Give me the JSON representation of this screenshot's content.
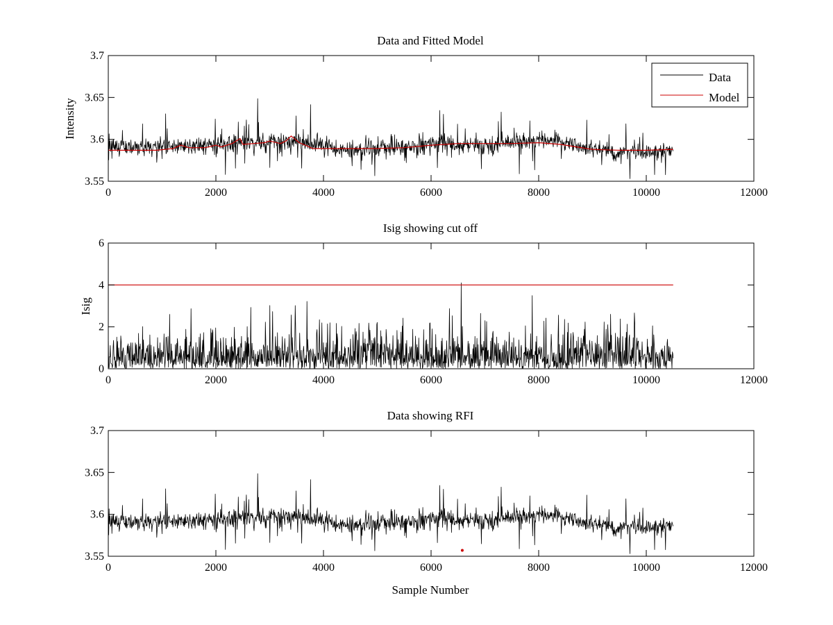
{
  "figure": {
    "background": "#ffffff"
  },
  "colors": {
    "data": "#000000",
    "model": "#cc0000",
    "axes": "#000000"
  },
  "chart_data": [
    {
      "type": "line",
      "title": "Data and Fitted Model",
      "xlabel": "",
      "ylabel": "Intensity",
      "xlim": [
        0,
        12000
      ],
      "ylim": [
        3.55,
        3.7
      ],
      "xticks": [
        0,
        2000,
        4000,
        6000,
        8000,
        10000,
        12000
      ],
      "xtick_labels": [
        "0",
        "2000",
        "4000",
        "6000",
        "8000",
        "10000",
        "12000"
      ],
      "yticks": [
        3.55,
        3.6,
        3.65,
        3.7
      ],
      "ytick_labels": [
        "3.55",
        "3.6",
        "3.65",
        "3.7"
      ],
      "grid": false,
      "legend": {
        "placement": "top-right",
        "entries": [
          "Data",
          "Model"
        ]
      },
      "series": [
        {
          "name": "Data",
          "color": "#000000",
          "kind": "noisy",
          "x_range": [
            0,
            10500
          ],
          "n": 1400,
          "noise_sd": 0.008,
          "spike_sd": 0.018,
          "baseline_x": [
            0,
            500,
            1000,
            1500,
            2000,
            2500,
            3000,
            3500,
            4000,
            4500,
            5000,
            5500,
            6000,
            6500,
            7000,
            7500,
            8000,
            8500,
            9000,
            9500,
            10000,
            10500
          ],
          "baseline_y": [
            3.592,
            3.591,
            3.592,
            3.593,
            3.594,
            3.596,
            3.598,
            3.598,
            3.591,
            3.587,
            3.589,
            3.591,
            3.595,
            3.592,
            3.593,
            3.596,
            3.6,
            3.597,
            3.588,
            3.584,
            3.585,
            3.585
          ]
        },
        {
          "name": "Model",
          "color": "#cc0000",
          "kind": "line",
          "x": [
            0,
            500,
            900,
            1200,
            1350,
            1500,
            1800,
            2000,
            2100,
            2300,
            2450,
            2500,
            2700,
            2900,
            3000,
            3200,
            3300,
            3400,
            3550,
            3700,
            3800,
            4000,
            4500,
            5000,
            5500,
            6000,
            6500,
            7000,
            7500,
            8000,
            8400,
            8700,
            9000,
            9500,
            10000,
            10500
          ],
          "y": [
            3.587,
            3.587,
            3.587,
            3.589,
            3.593,
            3.59,
            3.59,
            3.593,
            3.591,
            3.595,
            3.601,
            3.594,
            3.595,
            3.596,
            3.598,
            3.595,
            3.598,
            3.604,
            3.596,
            3.592,
            3.589,
            3.589,
            3.589,
            3.589,
            3.59,
            3.593,
            3.595,
            3.595,
            3.595,
            3.596,
            3.594,
            3.591,
            3.588,
            3.587,
            3.587,
            3.588
          ]
        }
      ]
    },
    {
      "type": "line",
      "title": "Isig showing cut off",
      "xlabel": "",
      "ylabel": "Isig",
      "xlim": [
        0,
        12000
      ],
      "ylim": [
        0,
        6
      ],
      "xticks": [
        0,
        2000,
        4000,
        6000,
        8000,
        10000,
        12000
      ],
      "xtick_labels": [
        "0",
        "2000",
        "4000",
        "6000",
        "8000",
        "10000",
        "12000"
      ],
      "yticks": [
        0,
        2,
        4,
        6
      ],
      "ytick_labels": [
        "0",
        "2",
        "4",
        "6"
      ],
      "grid": false,
      "series": [
        {
          "color": "#000000",
          "kind": "isig",
          "x_range": [
            0,
            10500
          ],
          "n": 1400,
          "scale": 0.8,
          "peak": {
            "x": 6560,
            "y": 4.1
          }
        },
        {
          "color": "#cc0000",
          "kind": "line",
          "x": [
            0,
            10500
          ],
          "y": [
            4,
            4
          ]
        }
      ]
    },
    {
      "type": "line",
      "title": "Data showing RFI",
      "xlabel": "Sample Number",
      "ylabel": "",
      "xlim": [
        0,
        12000
      ],
      "ylim": [
        3.55,
        3.7
      ],
      "xticks": [
        0,
        2000,
        4000,
        6000,
        8000,
        10000,
        12000
      ],
      "xtick_labels": [
        "0",
        "2000",
        "4000",
        "6000",
        "8000",
        "10000",
        "12000"
      ],
      "yticks": [
        3.55,
        3.6,
        3.65,
        3.7
      ],
      "ytick_labels": [
        "3.55",
        "3.6",
        "3.65",
        "3.7"
      ],
      "grid": false,
      "series": [
        {
          "color": "#000000",
          "kind": "noisy",
          "same_as": "Data"
        }
      ],
      "markers": [
        {
          "x": 6580,
          "y": 3.557,
          "color": "#cc0000",
          "shape": "dot"
        }
      ]
    }
  ]
}
